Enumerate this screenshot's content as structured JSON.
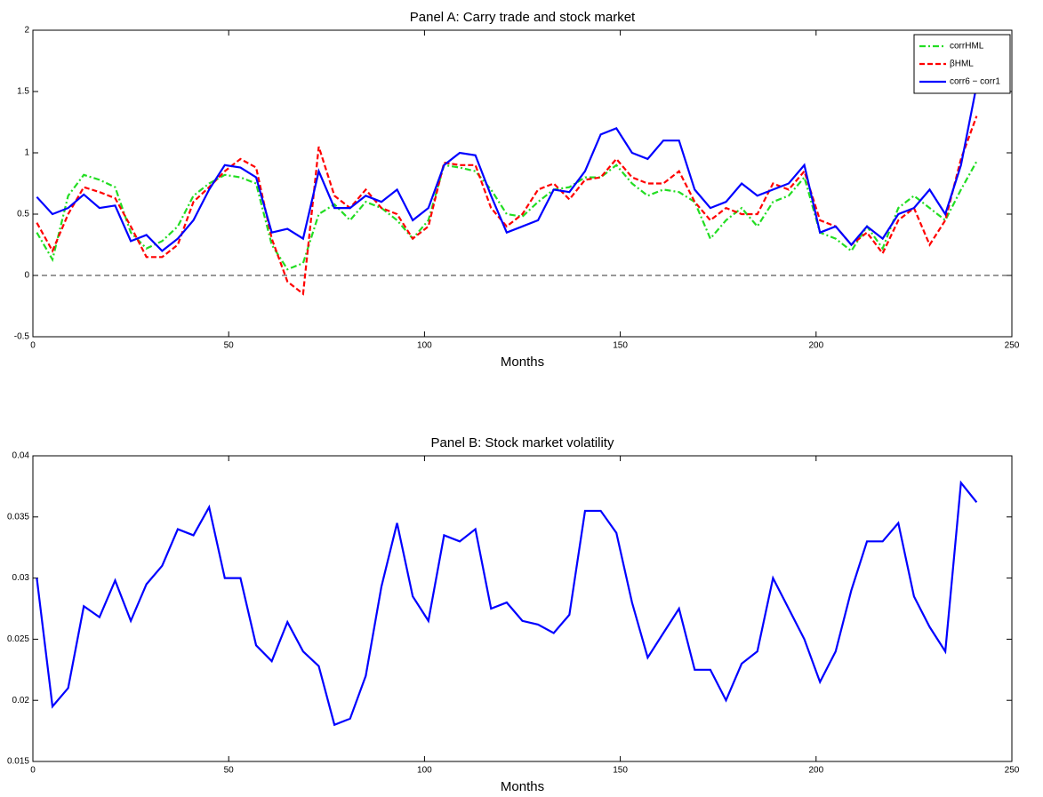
{
  "chart_data": [
    {
      "type": "line",
      "title": "Panel A: Carry trade and stock market",
      "x_label": "Months",
      "x": [
        1,
        5,
        9,
        13,
        17,
        21,
        25,
        29,
        33,
        37,
        41,
        45,
        49,
        53,
        57,
        61,
        65,
        69,
        73,
        77,
        81,
        85,
        89,
        93,
        97,
        101,
        105,
        109,
        113,
        117,
        121,
        125,
        129,
        133,
        137,
        141,
        145,
        149,
        153,
        157,
        161,
        165,
        169,
        173,
        177,
        181,
        185,
        189,
        193,
        197,
        201,
        205,
        209,
        213,
        217,
        221,
        225,
        229,
        233,
        237,
        241
      ],
      "series": [
        {
          "name": "corrHML",
          "color": "#22dd22",
          "style": "dashdot",
          "values": [
            0.35,
            0.13,
            0.65,
            0.82,
            0.78,
            0.72,
            0.35,
            0.22,
            0.28,
            0.4,
            0.65,
            0.75,
            0.82,
            0.8,
            0.75,
            0.25,
            0.05,
            0.1,
            0.5,
            0.58,
            0.45,
            0.6,
            0.55,
            0.45,
            0.3,
            0.45,
            0.9,
            0.88,
            0.85,
            0.7,
            0.5,
            0.48,
            0.6,
            0.7,
            0.72,
            0.8,
            0.8,
            0.9,
            0.75,
            0.65,
            0.7,
            0.68,
            0.6,
            0.3,
            0.45,
            0.55,
            0.4,
            0.6,
            0.65,
            0.8,
            0.35,
            0.3,
            0.2,
            0.4,
            0.22,
            0.55,
            0.65,
            0.55,
            0.45,
            0.7,
            0.93
          ]
        },
        {
          "name": "βHML",
          "color": "#ff0000",
          "style": "dashed",
          "values": [
            0.43,
            0.2,
            0.5,
            0.72,
            0.68,
            0.63,
            0.4,
            0.15,
            0.15,
            0.25,
            0.6,
            0.72,
            0.85,
            0.95,
            0.88,
            0.3,
            -0.05,
            -0.15,
            1.05,
            0.65,
            0.55,
            0.7,
            0.55,
            0.5,
            0.3,
            0.4,
            0.92,
            0.9,
            0.9,
            0.55,
            0.4,
            0.5,
            0.7,
            0.75,
            0.62,
            0.78,
            0.8,
            0.95,
            0.8,
            0.75,
            0.75,
            0.85,
            0.6,
            0.45,
            0.55,
            0.5,
            0.5,
            0.75,
            0.7,
            0.85,
            0.45,
            0.4,
            0.25,
            0.35,
            0.18,
            0.45,
            0.55,
            0.25,
            0.45,
            0.95,
            1.3
          ]
        },
        {
          "name": "corr6 − corr1",
          "color": "#0000ff",
          "style": "solid",
          "values": [
            0.64,
            0.5,
            0.55,
            0.66,
            0.55,
            0.57,
            0.28,
            0.33,
            0.2,
            0.3,
            0.45,
            0.7,
            0.9,
            0.88,
            0.8,
            0.35,
            0.38,
            0.3,
            0.85,
            0.55,
            0.55,
            0.65,
            0.6,
            0.7,
            0.45,
            0.55,
            0.9,
            1.0,
            0.98,
            0.65,
            0.35,
            0.4,
            0.45,
            0.7,
            0.68,
            0.85,
            1.15,
            1.2,
            1.0,
            0.95,
            1.1,
            1.1,
            0.7,
            0.55,
            0.6,
            0.75,
            0.65,
            0.7,
            0.75,
            0.9,
            0.35,
            0.4,
            0.25,
            0.4,
            0.3,
            0.5,
            0.55,
            0.7,
            0.5,
            0.9,
            1.55
          ]
        }
      ],
      "reference_line": 0,
      "xlim": [
        0,
        250
      ],
      "xticks": [
        0,
        50,
        100,
        150,
        200,
        250
      ],
      "ylim": [
        -0.5,
        2
      ],
      "yticks": [
        -0.5,
        0,
        0.5,
        1,
        1.5,
        2
      ],
      "legend": "upper right"
    },
    {
      "type": "line",
      "title": "Panel B: Stock market volatility",
      "x_label": "Months",
      "x": [
        1,
        5,
        9,
        13,
        17,
        21,
        25,
        29,
        33,
        37,
        41,
        45,
        49,
        53,
        57,
        61,
        65,
        69,
        73,
        77,
        81,
        85,
        89,
        93,
        97,
        101,
        105,
        109,
        113,
        117,
        121,
        125,
        129,
        133,
        137,
        141,
        145,
        149,
        153,
        157,
        161,
        165,
        169,
        173,
        177,
        181,
        185,
        189,
        193,
        197,
        201,
        205,
        209,
        213,
        217,
        221,
        225,
        229,
        233,
        237,
        241
      ],
      "series": [
        {
          "color": "#0000ff",
          "style": "solid",
          "values": [
            0.03,
            0.0195,
            0.021,
            0.0277,
            0.0268,
            0.0298,
            0.0265,
            0.0295,
            0.031,
            0.034,
            0.0335,
            0.0358,
            0.03,
            0.03,
            0.0245,
            0.0232,
            0.0264,
            0.024,
            0.0228,
            0.018,
            0.0185,
            0.022,
            0.0293,
            0.0345,
            0.0285,
            0.0265,
            0.0335,
            0.033,
            0.034,
            0.0275,
            0.028,
            0.0265,
            0.0262,
            0.0255,
            0.027,
            0.0355,
            0.0355,
            0.0337,
            0.028,
            0.0235,
            0.0255,
            0.0275,
            0.0225,
            0.0225,
            0.02,
            0.023,
            0.024,
            0.03,
            0.0275,
            0.025,
            0.0215,
            0.024,
            0.029,
            0.033,
            0.033,
            0.0345,
            0.0285,
            0.026,
            0.024,
            0.0378,
            0.0362
          ]
        }
      ],
      "xlim": [
        0,
        250
      ],
      "xticks": [
        0,
        50,
        100,
        150,
        200,
        250
      ],
      "ylim": [
        0.015,
        0.04
      ],
      "yticks": [
        0.015,
        0.02,
        0.025,
        0.03,
        0.035,
        0.04
      ]
    }
  ]
}
